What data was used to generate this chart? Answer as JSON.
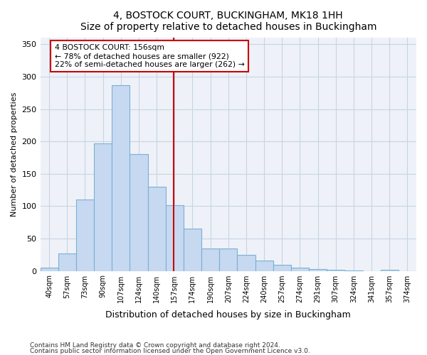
{
  "title": "4, BOSTOCK COURT, BUCKINGHAM, MK18 1HH",
  "subtitle": "Size of property relative to detached houses in Buckingham",
  "xlabel": "Distribution of detached houses by size in Buckingham",
  "ylabel": "Number of detached properties",
  "bar_labels": [
    "40sqm",
    "57sqm",
    "73sqm",
    "90sqm",
    "107sqm",
    "124sqm",
    "140sqm",
    "157sqm",
    "174sqm",
    "190sqm",
    "207sqm",
    "224sqm",
    "240sqm",
    "257sqm",
    "274sqm",
    "291sqm",
    "307sqm",
    "324sqm",
    "341sqm",
    "357sqm",
    "374sqm"
  ],
  "bar_values": [
    5,
    27,
    110,
    197,
    287,
    181,
    130,
    101,
    65,
    35,
    35,
    25,
    16,
    9,
    5,
    3,
    2,
    1,
    0,
    2,
    0
  ],
  "bar_color": "#c6d9f1",
  "bar_edge_color": "#7bafd4",
  "annotation_line_color": "#cc0000",
  "annotation_box_text": "4 BOSTOCK COURT: 156sqm\n← 78% of detached houses are smaller (922)\n22% of semi-detached houses are larger (262) →",
  "annotation_box_color": "#cc0000",
  "ylim": [
    0,
    360
  ],
  "yticks": [
    0,
    50,
    100,
    150,
    200,
    250,
    300,
    350
  ],
  "grid_color": "#c8d4e3",
  "background_color": "#eef2f8",
  "footnote1": "Contains HM Land Registry data © Crown copyright and database right 2024.",
  "footnote2": "Contains public sector information licensed under the Open Government Licence v3.0."
}
